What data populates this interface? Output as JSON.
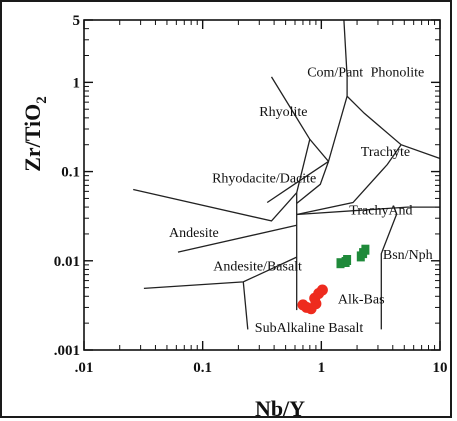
{
  "chart_data": {
    "type": "scatter",
    "title": "",
    "xlabel": "Nb/Y",
    "ylabel_main": "Zr/TiO",
    "ylabel_sub": "2",
    "x_scale": "log",
    "y_scale": "log",
    "xlim": [
      0.01,
      10
    ],
    "ylim": [
      0.001,
      5
    ],
    "x_ticks": [
      {
        "value": 0.01,
        "label": ".01"
      },
      {
        "value": 0.1,
        "label": "0.1"
      },
      {
        "value": 1,
        "label": "1"
      },
      {
        "value": 10,
        "label": "10"
      }
    ],
    "y_ticks": [
      {
        "value": 0.001,
        "label": ".001"
      },
      {
        "value": 0.01,
        "label": "0.01"
      },
      {
        "value": 0.1,
        "label": "0.1"
      },
      {
        "value": 1,
        "label": "1"
      },
      {
        "value": 5,
        "label": "5"
      }
    ],
    "field_labels": [
      {
        "text": "Com/Pant",
        "x": 0.76,
        "y": 1.17
      },
      {
        "text": "Phonolite",
        "x": 2.6,
        "y": 1.17
      },
      {
        "text": "Rhyolite",
        "x": 0.3,
        "y": 0.42
      },
      {
        "text": "Trachyte",
        "x": 2.15,
        "y": 0.15
      },
      {
        "text": "Rhyodacite/Dacite",
        "x": 0.12,
        "y": 0.075
      },
      {
        "text": "TrachyAnd",
        "x": 1.72,
        "y": 0.033
      },
      {
        "text": "Andesite",
        "x": 0.052,
        "y": 0.0185
      },
      {
        "text": "Bsn/Nph",
        "x": 3.3,
        "y": 0.0105
      },
      {
        "text": "Andesite/Basalt",
        "x": 0.123,
        "y": 0.0078
      },
      {
        "text": "Alk-Bas",
        "x": 1.38,
        "y": 0.0033
      },
      {
        "text": "SubAlkaline Basalt",
        "x": 0.275,
        "y": 0.0016
      }
    ],
    "boundaries": [
      [
        [
          1.55,
          5
        ],
        [
          1.65,
          1.17
        ],
        [
          1.65,
          0.7
        ],
        [
          2.3,
          0.45
        ],
        [
          4.7,
          0.2
        ],
        [
          10,
          0.14
        ]
      ],
      [
        [
          0.38,
          1.15
        ],
        [
          0.8,
          0.23
        ],
        [
          1.15,
          0.13
        ],
        [
          1.65,
          0.7
        ]
      ],
      [
        [
          0.35,
          0.045
        ],
        [
          0.62,
          0.075
        ],
        [
          1.15,
          0.13
        ]
      ],
      [
        [
          0.026,
          0.063
        ],
        [
          0.38,
          0.028
        ],
        [
          0.62,
          0.058
        ],
        [
          0.8,
          0.23
        ]
      ],
      [
        [
          0.62,
          0.058
        ],
        [
          0.62,
          0.0028
        ]
      ],
      [
        [
          0.62,
          0.033
        ],
        [
          5.3,
          0.04
        ],
        [
          10,
          0.04
        ]
      ],
      [
        [
          0.62,
          0.033
        ],
        [
          1.85,
          0.045
        ],
        [
          3.6,
          0.12
        ],
        [
          4.7,
          0.2
        ]
      ],
      [
        [
          0.62,
          0.044
        ],
        [
          0.98,
          0.072
        ],
        [
          1.15,
          0.13
        ]
      ],
      [
        [
          4.3,
          0.033
        ],
        [
          3.2,
          0.012
        ],
        [
          3.2,
          0.0017
        ]
      ],
      [
        [
          0.062,
          0.0125
        ],
        [
          0.62,
          0.025
        ]
      ],
      [
        [
          0.032,
          0.0049
        ],
        [
          0.22,
          0.0058
        ],
        [
          0.62,
          0.011
        ]
      ],
      [
        [
          0.22,
          0.0058
        ],
        [
          0.24,
          0.0017
        ]
      ]
    ],
    "series": [
      {
        "color": "#ee2b1e",
        "marker": "circle",
        "points": [
          [
            0.7,
            0.0032
          ],
          [
            0.75,
            0.003
          ],
          [
            0.82,
            0.0029
          ],
          [
            0.9,
            0.0033
          ],
          [
            0.88,
            0.0038
          ],
          [
            0.95,
            0.0043
          ],
          [
            1.02,
            0.0047
          ]
        ]
      },
      {
        "color": "#1f8a3a",
        "marker": "square",
        "points": [
          [
            1.45,
            0.0094
          ],
          [
            1.6,
            0.0097
          ],
          [
            1.65,
            0.0102
          ],
          [
            2.15,
            0.0112
          ],
          [
            2.25,
            0.0122
          ],
          [
            2.35,
            0.0133
          ]
        ]
      }
    ]
  }
}
